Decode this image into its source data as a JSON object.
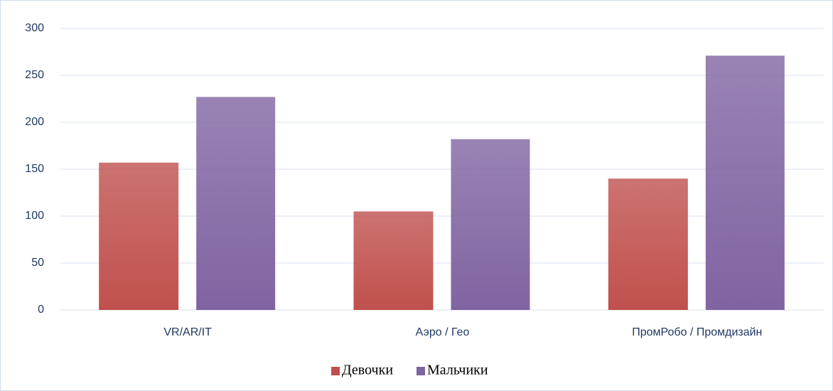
{
  "chart_data": {
    "type": "bar",
    "categories": [
      "VR/AR/IT",
      "Аэро / Гео",
      "ПромРобо / Промдизайн"
    ],
    "series": [
      {
        "name": "Девочки",
        "color": "#c0504d",
        "values": [
          157,
          105,
          140
        ]
      },
      {
        "name": "Мальчики",
        "color": "#8064a2",
        "values": [
          227,
          182,
          271
        ]
      }
    ],
    "ylim": [
      0,
      300
    ],
    "yticks": [
      0,
      50,
      100,
      150,
      200,
      250,
      300
    ],
    "grid": true,
    "legend": "bottom"
  }
}
